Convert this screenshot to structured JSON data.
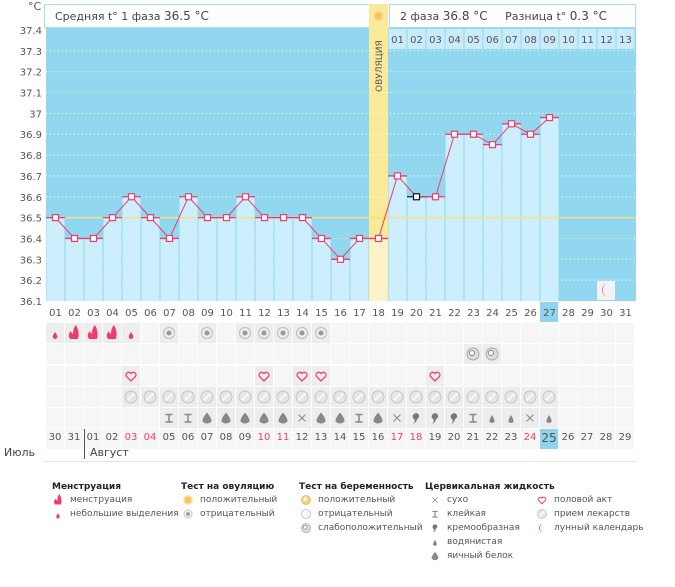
{
  "header": {
    "unit": "°C",
    "phase1_label": "Средняя t° 1 фаза",
    "phase1_value": "36.5 °C",
    "phase2_label": "2 фаза",
    "phase2_value": "36.8 °C",
    "diff_label": "Разница t°",
    "diff_value": "0.3 °C",
    "ovulation_label": "ОВУЛЯЦИЯ",
    "ovulation_icon": "sun-icon"
  },
  "chart_data": {
    "type": "line",
    "x": [
      "01",
      "02",
      "03",
      "04",
      "05",
      "06",
      "07",
      "08",
      "09",
      "10",
      "11",
      "12",
      "13",
      "14",
      "15",
      "16",
      "17",
      "18",
      "19",
      "20",
      "21",
      "22",
      "23",
      "24",
      "25",
      "26",
      "27",
      "28",
      "29",
      "30",
      "31"
    ],
    "values": [
      36.5,
      36.4,
      36.4,
      36.5,
      36.6,
      36.5,
      36.4,
      36.6,
      36.5,
      36.5,
      36.6,
      36.5,
      36.5,
      36.5,
      36.4,
      36.3,
      36.4,
      36.4,
      36.7,
      36.6,
      36.6,
      36.9,
      36.9,
      36.85,
      36.95,
      36.9,
      36.98,
      null,
      null,
      null,
      null
    ],
    "ylim": [
      36.1,
      37.4
    ],
    "yticks": [
      "36.1",
      "36.2",
      "36.3",
      "36.4",
      "36.5",
      "36.6",
      "36.7",
      "36.8",
      "36.9",
      "37",
      "37.1",
      "37.2",
      "37.3",
      "37.4"
    ],
    "ylabel": "°C",
    "grid": true,
    "cover_line": 36.5,
    "ovulation_day": 18,
    "current_day": 27,
    "phase2_days": [
      "01",
      "02",
      "03",
      "04",
      "05",
      "06",
      "07",
      "08",
      "09",
      "10",
      "11",
      "12",
      "13"
    ],
    "moon_day": 30,
    "colors": {
      "background": "#92d7f0",
      "bar": "#cdeefc",
      "line": "#ee3d6b",
      "cover_line": "#f5e27a",
      "ovulation": "#fbe99a",
      "highlight": "#8fd3f0"
    }
  },
  "rows": {
    "menstruation": {
      "1": "small",
      "2": "heavy",
      "3": "heavy",
      "4": "heavy",
      "5": "small"
    },
    "ovulation_test": {
      "7": "negative",
      "9": "negative",
      "11": "negative",
      "12": "negative",
      "13": "negative",
      "14": "negative",
      "15": "negative"
    },
    "pregnancy_test": {
      "23": "weak",
      "24": "weak"
    },
    "intercourse": {
      "5": true,
      "12": true,
      "14": true,
      "15": true,
      "21": true
    },
    "medication": {
      "5": true,
      "6": true,
      "7": true,
      "8": true,
      "9": true,
      "10": true,
      "11": true,
      "12": true,
      "13": true,
      "14": true,
      "15": true,
      "16": true,
      "17": true,
      "18": true,
      "19": true,
      "20": true,
      "21": true,
      "22": true,
      "23": true,
      "24": true,
      "25": true,
      "26": true,
      "27": true
    },
    "cervical_fluid": {
      "7": "sticky",
      "8": "sticky",
      "9": "eggwhite",
      "10": "eggwhite",
      "11": "eggwhite",
      "12": "eggwhite",
      "13": "eggwhite",
      "14": "dry",
      "15": "eggwhite",
      "16": "eggwhite",
      "17": "sticky",
      "18": "eggwhite",
      "19": "dry",
      "20": "creamy",
      "21": "creamy",
      "22": "creamy",
      "23": "sticky",
      "24": "watery",
      "25": "watery",
      "26": "dry",
      "27": "watery"
    }
  },
  "dates": [
    "30",
    "31",
    "01",
    "02",
    "03",
    "04",
    "05",
    "06",
    "07",
    "08",
    "09",
    "10",
    "11",
    "12",
    "13",
    "14",
    "15",
    "16",
    "17",
    "18",
    "19",
    "20",
    "21",
    "22",
    "23",
    "24",
    "25",
    "26",
    "27",
    "28",
    "29"
  ],
  "weekend_dates": [
    "03",
    "04",
    "10",
    "11",
    "17",
    "18",
    "24"
  ],
  "today_date": "25",
  "months": [
    "Июль",
    "Август"
  ],
  "legend": {
    "menstruation": {
      "title": "Менструация",
      "items": [
        "менструация",
        "небольшие выделения"
      ]
    },
    "ovulation_test": {
      "title": "Тест на овуляцию",
      "items": [
        "положительный",
        "отрицательный"
      ]
    },
    "pregnancy_test": {
      "title": "Тест на беременность",
      "items": [
        "положительный",
        "отрицательный",
        "слабоположительный"
      ]
    },
    "cervical_fluid": {
      "title": "Цервикальная жидкость",
      "items": [
        "сухо",
        "клейкая",
        "кремообразная",
        "водянистая",
        "яичный белок"
      ]
    },
    "other": {
      "items": [
        "половой акт",
        "прием лекарств",
        "лунный календарь"
      ]
    }
  }
}
